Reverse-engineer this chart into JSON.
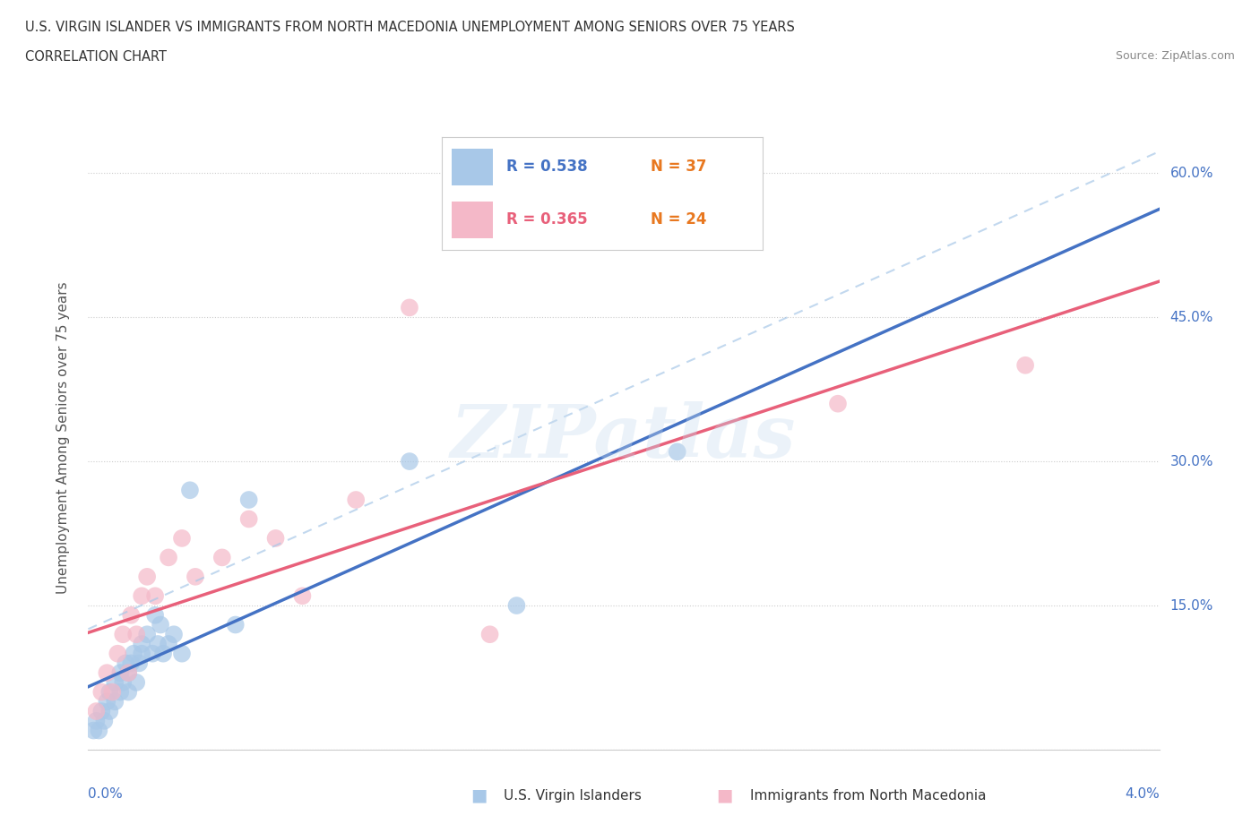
{
  "title_line1": "U.S. VIRGIN ISLANDER VS IMMIGRANTS FROM NORTH MACEDONIA UNEMPLOYMENT AMONG SENIORS OVER 75 YEARS",
  "title_line2": "CORRELATION CHART",
  "source": "Source: ZipAtlas.com",
  "ylabel": "Unemployment Among Seniors over 75 years",
  "xlim": [
    0.0,
    0.04
  ],
  "ylim": [
    0.0,
    0.65
  ],
  "yticks": [
    0.0,
    0.15,
    0.3,
    0.45,
    0.6
  ],
  "ytick_labels": [
    "",
    "15.0%",
    "30.0%",
    "45.0%",
    "60.0%"
  ],
  "xtick_labels": [
    "0.0%",
    "",
    "",
    "",
    "",
    "",
    "",
    "",
    "",
    "",
    "4.0%"
  ],
  "legend_r1": "R = 0.538",
  "legend_n1": "N = 37",
  "legend_r2": "R = 0.365",
  "legend_n2": "N = 24",
  "color_blue": "#A8C8E8",
  "color_pink": "#F4B8C8",
  "color_blue_line": "#4472C4",
  "color_pink_line": "#E8607A",
  "color_blue_dash": "#A8C8E8",
  "color_r_blue": "#4472C4",
  "color_r_pink": "#E8607A",
  "color_n_orange": "#E87820",
  "color_axis_label": "#4472C4",
  "watermark_text": "ZIPatlas",
  "legend_label_blue": "U.S. Virgin Islanders",
  "legend_label_pink": "Immigrants from North Macedonia",
  "blue_x": [
    0.0002,
    0.0003,
    0.0004,
    0.0005,
    0.0006,
    0.0007,
    0.0008,
    0.0008,
    0.001,
    0.001,
    0.0012,
    0.0012,
    0.0013,
    0.0014,
    0.0015,
    0.0015,
    0.0016,
    0.0017,
    0.0018,
    0.0019,
    0.002,
    0.002,
    0.0022,
    0.0024,
    0.0025,
    0.0026,
    0.0027,
    0.0028,
    0.003,
    0.0032,
    0.0035,
    0.0038,
    0.0055,
    0.006,
    0.012,
    0.016,
    0.022
  ],
  "blue_y": [
    0.02,
    0.03,
    0.02,
    0.04,
    0.03,
    0.05,
    0.04,
    0.06,
    0.05,
    0.07,
    0.06,
    0.08,
    0.07,
    0.09,
    0.06,
    0.08,
    0.09,
    0.1,
    0.07,
    0.09,
    0.1,
    0.11,
    0.12,
    0.1,
    0.14,
    0.11,
    0.13,
    0.1,
    0.11,
    0.12,
    0.1,
    0.27,
    0.13,
    0.26,
    0.3,
    0.15,
    0.31
  ],
  "pink_x": [
    0.0003,
    0.0005,
    0.0007,
    0.0009,
    0.0011,
    0.0013,
    0.0015,
    0.0016,
    0.0018,
    0.002,
    0.0022,
    0.0025,
    0.003,
    0.0035,
    0.004,
    0.005,
    0.006,
    0.007,
    0.008,
    0.01,
    0.012,
    0.015,
    0.028,
    0.035
  ],
  "pink_y": [
    0.04,
    0.06,
    0.08,
    0.06,
    0.1,
    0.12,
    0.08,
    0.14,
    0.12,
    0.16,
    0.18,
    0.16,
    0.2,
    0.22,
    0.18,
    0.2,
    0.24,
    0.22,
    0.16,
    0.26,
    0.46,
    0.12,
    0.36,
    0.4
  ]
}
